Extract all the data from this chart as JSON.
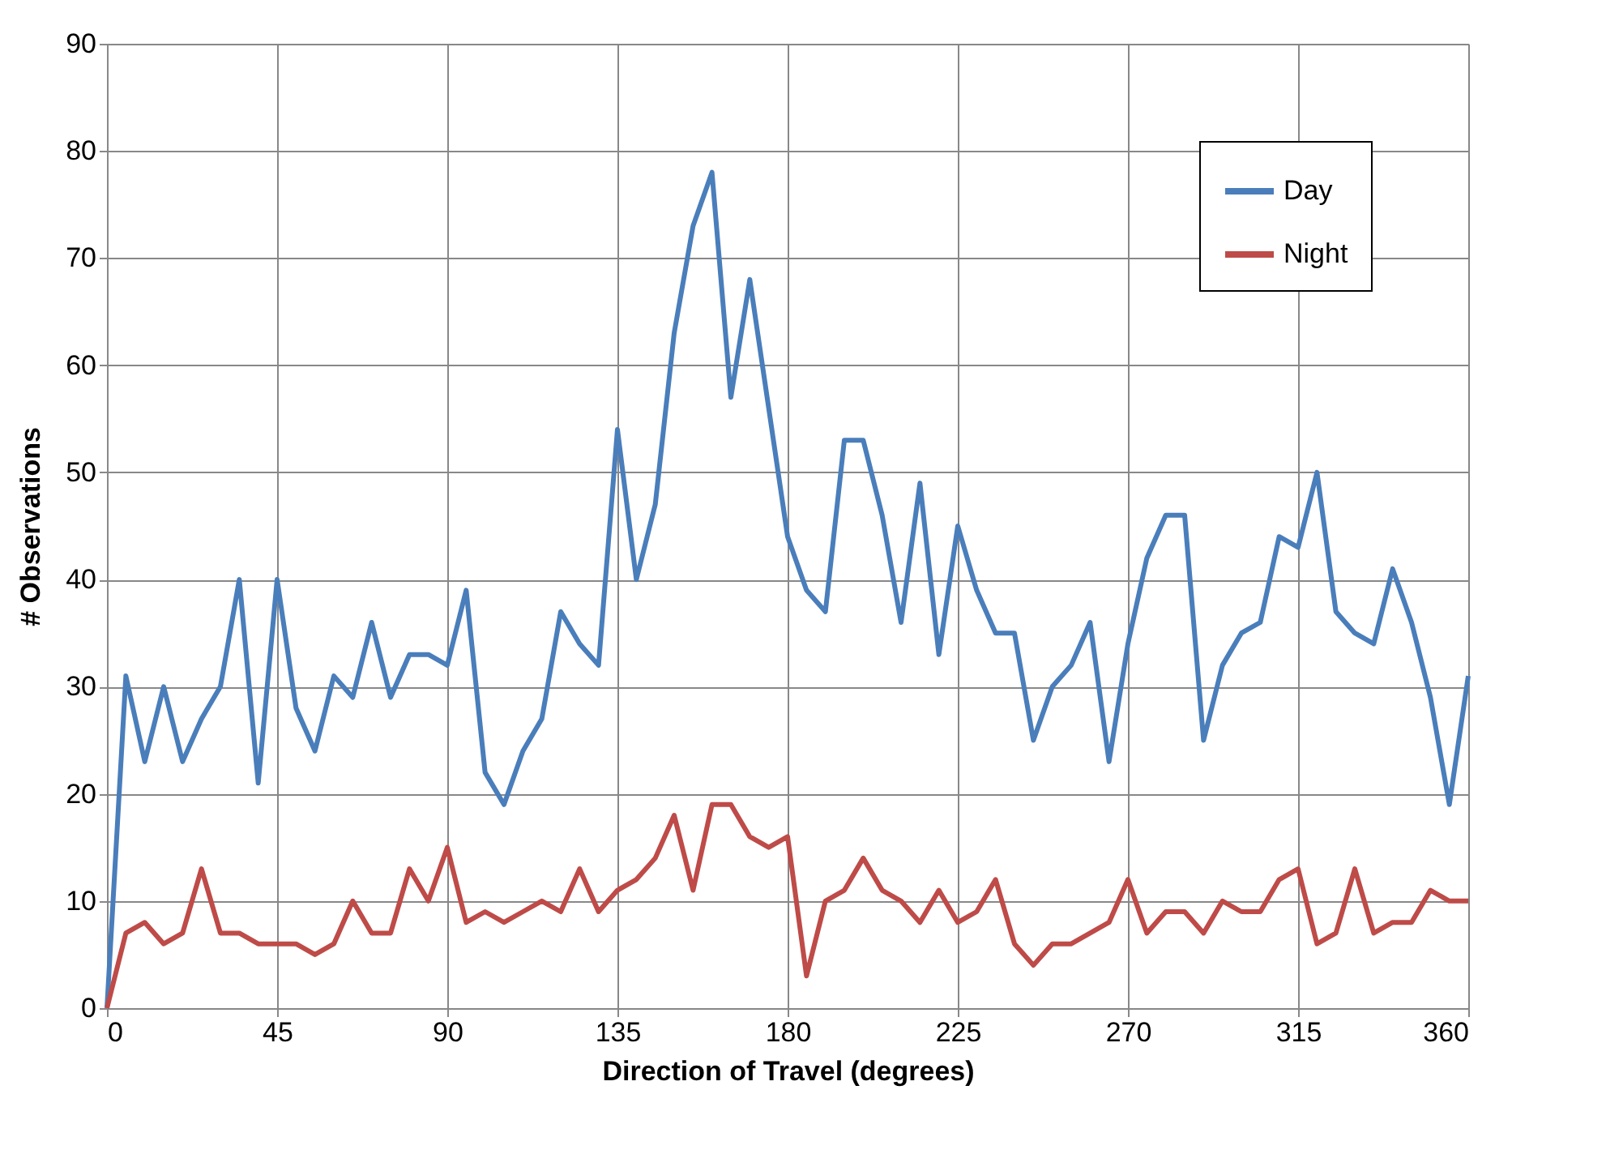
{
  "chart_data": {
    "type": "line",
    "xlabel": "Direction of Travel (degrees)",
    "ylabel": "# Observations",
    "x": [
      0,
      5,
      10,
      15,
      20,
      25,
      30,
      35,
      40,
      45,
      50,
      55,
      60,
      65,
      70,
      75,
      80,
      85,
      90,
      95,
      100,
      105,
      110,
      115,
      120,
      125,
      130,
      135,
      140,
      145,
      150,
      155,
      160,
      165,
      170,
      175,
      180,
      185,
      190,
      195,
      200,
      205,
      210,
      215,
      220,
      225,
      230,
      235,
      240,
      245,
      250,
      255,
      260,
      265,
      270,
      275,
      280,
      285,
      290,
      295,
      300,
      305,
      310,
      315,
      320,
      325,
      330,
      335,
      340,
      345,
      350,
      355,
      360
    ],
    "series": [
      {
        "name": "Day",
        "color": "#4a7ebb",
        "values": [
          0,
          31,
          23,
          30,
          23,
          27,
          30,
          40,
          21,
          40,
          28,
          24,
          31,
          29,
          36,
          29,
          33,
          33,
          32,
          39,
          22,
          19,
          24,
          27,
          37,
          34,
          32,
          54,
          40,
          47,
          63,
          73,
          78,
          57,
          68,
          56,
          44,
          39,
          37,
          53,
          53,
          46,
          36,
          49,
          33,
          45,
          39,
          35,
          35,
          25,
          30,
          32,
          36,
          23,
          34,
          42,
          46,
          46,
          25,
          32,
          35,
          36,
          44,
          43,
          50,
          37,
          35,
          34,
          41,
          36,
          29,
          19,
          31
        ]
      },
      {
        "name": "Night",
        "color": "#be4b48",
        "values": [
          0,
          7,
          8,
          6,
          7,
          13,
          7,
          7,
          6,
          6,
          6,
          5,
          6,
          10,
          7,
          7,
          13,
          10,
          15,
          8,
          9,
          8,
          9,
          10,
          9,
          13,
          9,
          11,
          12,
          14,
          18,
          11,
          19,
          19,
          16,
          15,
          16,
          3,
          10,
          11,
          14,
          11,
          10,
          8,
          11,
          8,
          9,
          12,
          6,
          4,
          6,
          6,
          7,
          8,
          12,
          7,
          9,
          9,
          7,
          10,
          9,
          9,
          12,
          13,
          6,
          7,
          13,
          7,
          8,
          8,
          11,
          10,
          10
        ]
      }
    ],
    "xlim": [
      0,
      360
    ],
    "xticks": [
      0,
      45,
      90,
      135,
      180,
      225,
      270,
      315,
      360
    ],
    "ylim": [
      0,
      90
    ],
    "yticks": [
      0,
      10,
      20,
      30,
      40,
      50,
      60,
      70,
      80,
      90
    ],
    "grid": true,
    "legend": "top right",
    "marker": "none",
    "line_style": "solid"
  }
}
